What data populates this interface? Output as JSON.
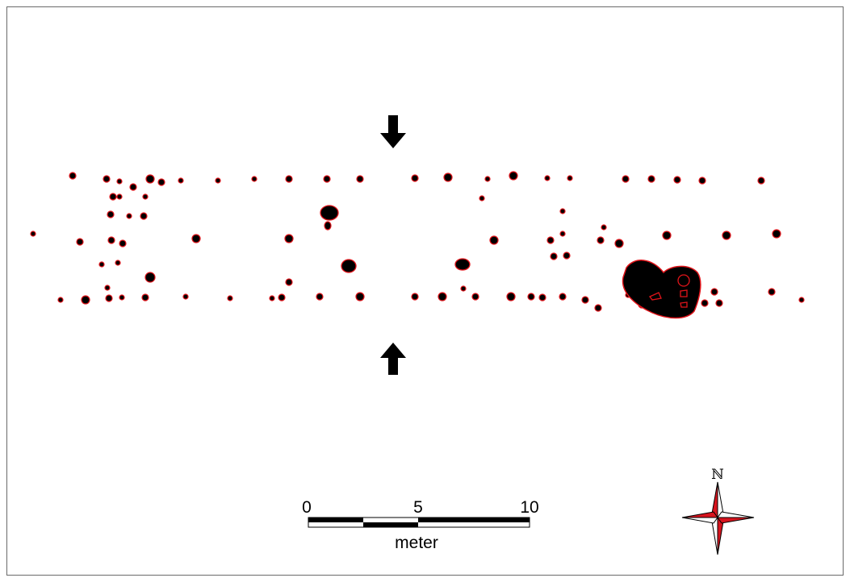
{
  "scale_bar": {
    "tick_labels": [
      "0",
      "5",
      "10"
    ],
    "unit": "meter"
  },
  "north_arrow": {
    "label": "ℕ"
  },
  "colors": {
    "feature_fill": "#000000",
    "feature_outline": "#e0141a",
    "frame": "#6a6a6a",
    "compass_red": "#d7141e"
  },
  "icons": {
    "arrow_top": "down-arrow-icon",
    "arrow_bottom": "up-arrow-icon",
    "compass": "compass-rose-icon"
  }
}
